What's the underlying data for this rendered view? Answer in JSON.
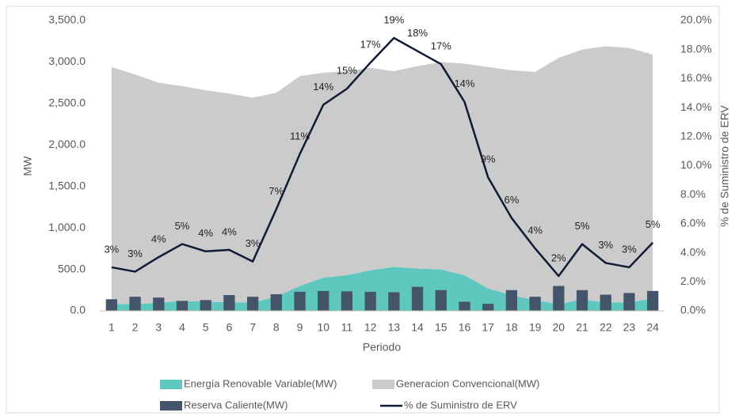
{
  "chart_data": {
    "type": "combo",
    "xlabel": "Periodo",
    "ylabel": "MW",
    "y2label": "% de Suministro de ERV",
    "categories": [
      "1",
      "2",
      "3",
      "4",
      "5",
      "6",
      "7",
      "8",
      "9",
      "10",
      "11",
      "12",
      "13",
      "14",
      "15",
      "16",
      "17",
      "18",
      "19",
      "20",
      "21",
      "22",
      "23",
      "24"
    ],
    "ylim": [
      0,
      3500
    ],
    "yticks": [
      {
        "value": 0,
        "label": "0.0"
      },
      {
        "value": 500,
        "label": "500.0"
      },
      {
        "value": 1000,
        "label": "1,000.0"
      },
      {
        "value": 1500,
        "label": "1,500.0"
      },
      {
        "value": 2000,
        "label": "2,000.0"
      },
      {
        "value": 2500,
        "label": "2,500.0"
      },
      {
        "value": 3000,
        "label": "3,000.0"
      },
      {
        "value": 3500,
        "label": "3,500.0"
      }
    ],
    "y2lim": [
      0,
      20
    ],
    "y2ticks": [
      {
        "value": 0,
        "label": "0.0%"
      },
      {
        "value": 2,
        "label": "2.0%"
      },
      {
        "value": 4,
        "label": "4.0%"
      },
      {
        "value": 6,
        "label": "6.0%"
      },
      {
        "value": 8,
        "label": "8.0%"
      },
      {
        "value": 10,
        "label": "10.0%"
      },
      {
        "value": 12,
        "label": "12.0%"
      },
      {
        "value": 14,
        "label": "14.0%"
      },
      {
        "value": 16,
        "label": "16.0%"
      },
      {
        "value": 18,
        "label": "18.0%"
      },
      {
        "value": 20,
        "label": "20.0%"
      }
    ],
    "series": [
      {
        "name": "Energía Renovable Variable(MW)",
        "type": "area",
        "stack": true,
        "color": "#5ec7bf",
        "values": [
          85,
          80,
          100,
          120,
          110,
          105,
          100,
          170,
          300,
          400,
          430,
          490,
          530,
          510,
          500,
          430,
          270,
          190,
          130,
          80,
          140,
          100,
          100,
          150
        ]
      },
      {
        "name": "Generacion Convencional(MW)",
        "type": "area",
        "stack": true,
        "color": "#cbcbcb",
        "values": [
          2855,
          2770,
          2650,
          2590,
          2550,
          2515,
          2470,
          2460,
          2530,
          2470,
          2460,
          2440,
          2360,
          2440,
          2500,
          2550,
          2670,
          2710,
          2750,
          2970,
          3010,
          3090,
          3070,
          2940
        ]
      },
      {
        "name": "Reserva Caliente(MW)",
        "type": "bar",
        "color": "#44546a",
        "values": [
          140,
          170,
          160,
          120,
          130,
          190,
          170,
          200,
          230,
          240,
          235,
          230,
          225,
          290,
          250,
          110,
          85,
          250,
          170,
          300,
          250,
          195,
          215,
          240
        ]
      },
      {
        "name": "% de Suministro de ERV",
        "type": "line",
        "axis": "y2",
        "color": "#0f1b35",
        "values": [
          3.0,
          2.7,
          3.7,
          4.6,
          4.1,
          4.2,
          3.4,
          7.0,
          10.8,
          14.2,
          15.3,
          17.1,
          18.8,
          17.9,
          17.0,
          14.4,
          9.2,
          6.4,
          4.3,
          2.4,
          4.6,
          3.3,
          3.0,
          4.7
        ],
        "value_labels": [
          "3%",
          "3%",
          "4%",
          "5%",
          "4%",
          "4%",
          "3%",
          "7%",
          "11%",
          "14%",
          "15%",
          "17%",
          "19%",
          "18%",
          "17%",
          "14%",
          "9%",
          "6%",
          "4%",
          "2%",
          "5%",
          "3%",
          "3%",
          "5%"
        ]
      }
    ]
  }
}
